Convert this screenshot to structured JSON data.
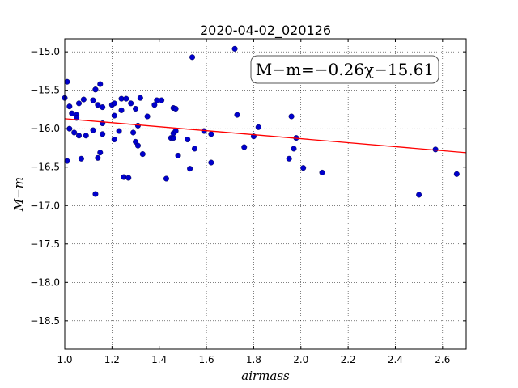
{
  "chart_data": {
    "type": "scatter",
    "title": "2020-04-02_020126",
    "xlabel": "airmass",
    "ylabel": "M−m",
    "xlim": [
      1.0,
      2.7
    ],
    "ylim": [
      -18.87,
      -14.83
    ],
    "y_inverted": true,
    "grid": true,
    "grid_style": "dotted",
    "xticks": [
      1.0,
      1.2,
      1.4,
      1.6,
      1.8,
      2.0,
      2.2,
      2.4,
      2.6
    ],
    "xtick_labels": [
      "1.0",
      "1.2",
      "1.4",
      "1.6",
      "1.8",
      "2.0",
      "2.2",
      "2.4",
      "2.6"
    ],
    "yticks": [
      -15.0,
      -15.5,
      -16.0,
      -16.5,
      -17.0,
      -17.5,
      -18.0,
      -18.5
    ],
    "ytick_labels": [
      "−15.0",
      "−15.5",
      "−16.0",
      "−16.5",
      "−17.0",
      "−17.5",
      "−18.0",
      "−18.5"
    ],
    "annotation": "M−m=−0.26χ−15.61",
    "fit_line": {
      "slope": -0.26,
      "intercept": -15.61,
      "color": "#ff0000"
    },
    "point_color": "#0000cc",
    "points": [
      [
        1.0,
        -15.6
      ],
      [
        1.01,
        -15.39
      ],
      [
        1.01,
        -16.42
      ],
      [
        1.02,
        -16.0
      ],
      [
        1.02,
        -15.71
      ],
      [
        1.03,
        -15.8
      ],
      [
        1.04,
        -16.05
      ],
      [
        1.05,
        -15.82
      ],
      [
        1.05,
        -15.86
      ],
      [
        1.06,
        -15.67
      ],
      [
        1.06,
        -16.09
      ],
      [
        1.07,
        -16.39
      ],
      [
        1.08,
        -15.62
      ],
      [
        1.09,
        -16.09
      ],
      [
        1.12,
        -15.63
      ],
      [
        1.12,
        -16.02
      ],
      [
        1.13,
        -15.49
      ],
      [
        1.13,
        -15.49
      ],
      [
        1.13,
        -16.85
      ],
      [
        1.14,
        -15.69
      ],
      [
        1.14,
        -16.38
      ],
      [
        1.15,
        -16.31
      ],
      [
        1.15,
        -15.42
      ],
      [
        1.16,
        -15.93
      ],
      [
        1.16,
        -16.07
      ],
      [
        1.16,
        -15.72
      ],
      [
        1.2,
        -15.69
      ],
      [
        1.21,
        -15.67
      ],
      [
        1.21,
        -15.83
      ],
      [
        1.21,
        -16.14
      ],
      [
        1.23,
        -16.03
      ],
      [
        1.24,
        -15.61
      ],
      [
        1.24,
        -15.76
      ],
      [
        1.25,
        -16.63
      ],
      [
        1.26,
        -15.61
      ],
      [
        1.27,
        -16.64
      ],
      [
        1.28,
        -15.67
      ],
      [
        1.29,
        -16.05
      ],
      [
        1.3,
        -15.74
      ],
      [
        1.3,
        -16.17
      ],
      [
        1.31,
        -16.22
      ],
      [
        1.31,
        -15.96
      ],
      [
        1.32,
        -15.6
      ],
      [
        1.33,
        -16.33
      ],
      [
        1.35,
        -15.84
      ],
      [
        1.38,
        -15.69
      ],
      [
        1.39,
        -15.63
      ],
      [
        1.41,
        -15.63
      ],
      [
        1.43,
        -16.65
      ],
      [
        1.45,
        -16.12
      ],
      [
        1.46,
        -16.12
      ],
      [
        1.46,
        -15.73
      ],
      [
        1.46,
        -16.06
      ],
      [
        1.47,
        -16.03
      ],
      [
        1.47,
        -15.74
      ],
      [
        1.48,
        -16.35
      ],
      [
        1.52,
        -16.14
      ],
      [
        1.53,
        -16.52
      ],
      [
        1.54,
        -15.07
      ],
      [
        1.55,
        -16.26
      ],
      [
        1.59,
        -16.03
      ],
      [
        1.62,
        -16.07
      ],
      [
        1.62,
        -16.44
      ],
      [
        1.72,
        -14.96
      ],
      [
        1.73,
        -15.82
      ],
      [
        1.76,
        -16.24
      ],
      [
        1.8,
        -16.1
      ],
      [
        1.82,
        -15.98
      ],
      [
        1.95,
        -16.39
      ],
      [
        1.96,
        -15.84
      ],
      [
        1.97,
        -16.26
      ],
      [
        1.98,
        -16.12
      ],
      [
        2.01,
        -16.51
      ],
      [
        2.09,
        -16.57
      ],
      [
        2.5,
        -16.86
      ],
      [
        2.57,
        -16.27
      ],
      [
        2.66,
        -16.59
      ]
    ]
  }
}
